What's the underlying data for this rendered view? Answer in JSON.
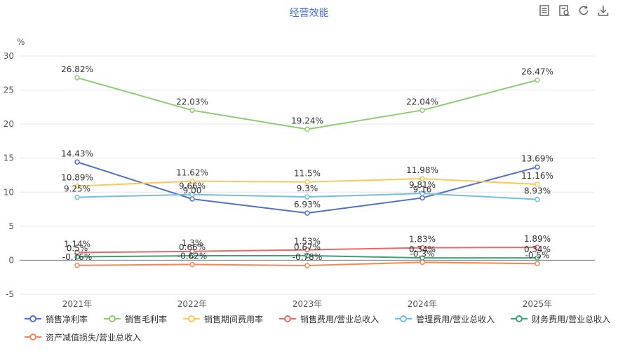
{
  "chart_data": {
    "type": "line",
    "title": "经营效能",
    "ylabel": "%",
    "xlabel": "",
    "categories": [
      "2021年",
      "2022年",
      "2023年",
      "2024年",
      "2025年"
    ],
    "ylim": [
      -5,
      30
    ],
    "yticks": [
      30,
      25,
      20,
      15,
      10,
      5,
      0,
      -5
    ],
    "grid": true,
    "legend": "bottom",
    "series": [
      {
        "name": "销售净利率",
        "color": "#5470c6",
        "values": [
          14.43,
          9.0,
          6.93,
          9.16,
          13.69
        ],
        "labels": [
          "14.43%",
          "9.00",
          "6.93%",
          "9.16",
          "13.69%"
        ]
      },
      {
        "name": "销售毛利率",
        "color": "#91cc75",
        "values": [
          26.82,
          22.03,
          19.24,
          22.04,
          26.47
        ],
        "labels": [
          "26.82%",
          "22.03%",
          "19.24%",
          "22.04%",
          "26.47%"
        ]
      },
      {
        "name": "销售期间费用率",
        "color": "#fac858",
        "values": [
          10.89,
          11.62,
          11.5,
          11.98,
          11.16
        ],
        "labels": [
          "10.89%",
          "11.62%",
          "11.5%",
          "11.98%",
          "11.16%"
        ]
      },
      {
        "name": "销售费用/营业总收入",
        "color": "#ee6666",
        "values": [
          1.14,
          1.3,
          1.53,
          1.83,
          1.89
        ],
        "labels": [
          "1.14%",
          "1.3%",
          "1.53%",
          "1.83%",
          "1.89%"
        ]
      },
      {
        "name": "管理费用/营业总收入",
        "color": "#73c0de",
        "values": [
          9.25,
          9.66,
          9.3,
          9.81,
          8.93
        ],
        "labels": [
          "9.25%",
          "9.66%",
          "9.3%",
          "9.81%",
          "8.93%"
        ]
      },
      {
        "name": "财务费用/营业总收入",
        "color": "#3ba272",
        "values": [
          0.5,
          0.66,
          0.67,
          0.34,
          0.34
        ],
        "labels": [
          "0.5%",
          "0.66%",
          "0.67%",
          "0.34%",
          "0.34%"
        ]
      },
      {
        "name": "资产减值损失/营业总收入",
        "color": "#fc8452",
        "values": [
          -0.76,
          -0.62,
          -0.78,
          -0.3,
          -0.5
        ],
        "labels": [
          "-0.76%",
          "-0.62%",
          "-0.78%",
          "-0.3%",
          "-0.5%"
        ]
      }
    ]
  },
  "toolbar": [
    {
      "name": "data-view-icon"
    },
    {
      "name": "restore-icon"
    },
    {
      "name": "refresh-icon"
    },
    {
      "name": "download-icon"
    }
  ]
}
